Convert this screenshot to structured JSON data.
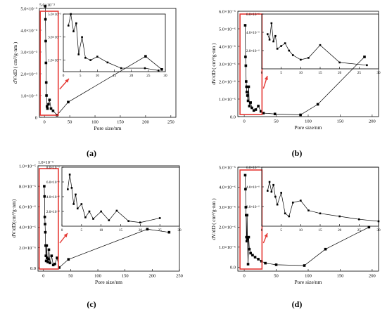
{
  "colors": {
    "ink": "#000000",
    "highlight": "#e53935"
  },
  "chart_data": [
    {
      "type": "line",
      "panel_label": "(a)",
      "xlabel": "Pore size/nm",
      "ylabel": "dV/dD ( cm³/g·nm )",
      "exp_label": "5.0×10⁻³",
      "xlim": [
        -10,
        260
      ],
      "ylim": [
        0,
        0.005
      ],
      "xticks": [
        0,
        50,
        100,
        150,
        200,
        250
      ],
      "xtick_labels": [
        "0",
        "50",
        "100",
        "150",
        "200",
        "250"
      ],
      "yticks": [
        0,
        0.001,
        0.002,
        0.003,
        0.004,
        0.005
      ],
      "ytick_labels": [
        "0",
        "1.0×10⁻³",
        "2.0×10⁻³",
        "3.0×10⁻³",
        "4.0×10⁻³",
        "5.0×10⁻³"
      ],
      "zoom_xrange": [
        0,
        30
      ],
      "x": [
        1.5,
        2,
        2.5,
        3,
        3.5,
        4,
        5,
        6,
        8,
        10,
        13,
        17,
        25,
        47,
        200,
        232
      ],
      "y": [
        0.0051,
        0.0045,
        0.0035,
        0.0025,
        0.0016,
        0.001,
        0.0005,
        0.0004,
        0.0006,
        0.0008,
        0.0004,
        0.0003,
        0.0001,
        0.0007,
        0.0028,
        0.0022
      ],
      "inset": {
        "xlim": [
          0,
          30
        ],
        "ylim": [
          0,
          0.005
        ],
        "xticks": [
          0,
          5,
          10,
          15,
          20,
          25,
          30
        ],
        "xtick_labels": [
          "0",
          "5",
          "10",
          "15",
          "20",
          "25",
          "30"
        ],
        "yticks": [
          0.001,
          0.003,
          0.005
        ],
        "ytick_labels": [
          "1.0×10⁻³",
          "3.0×10⁻³",
          "5.0×10⁻³"
        ],
        "x": [
          1.5,
          2.2,
          3,
          3.8,
          4.5,
          5.5,
          6.5,
          8,
          10,
          13,
          17,
          24,
          28
        ],
        "y": [
          0.004,
          0.005,
          0.0035,
          0.0042,
          0.0015,
          0.003,
          0.0012,
          0.001,
          0.0013,
          0.0008,
          0.0003,
          0.0003,
          0.0001
        ]
      }
    },
    {
      "type": "line",
      "panel_label": "(b)",
      "xlabel": "Pore size/nm",
      "ylabel": "dV/dD ( cm³/g·nm )",
      "exp_label": "",
      "xlim": [
        -10,
        210
      ],
      "ylim": [
        0,
        6e-06
      ],
      "xticks": [
        0,
        50,
        100,
        150,
        200
      ],
      "xtick_labels": [
        "0",
        "50",
        "100",
        "150",
        "200"
      ],
      "yticks": [
        0,
        1e-06,
        2e-06,
        3e-06,
        4e-06,
        5e-06,
        6e-06
      ],
      "ytick_labels": [
        "0.0",
        "1.0×10⁻⁶",
        "2.0×10⁻⁶",
        "3.0×10⁻⁶",
        "4.0×10⁻⁶",
        "5.0×10⁻⁶",
        "6.0×10⁻⁶"
      ],
      "zoom_xrange": [
        0,
        30
      ],
      "x": [
        1.5,
        2,
        2.5,
        3,
        3.5,
        4,
        5,
        6,
        7,
        8,
        10,
        12,
        15,
        18,
        22,
        26,
        30,
        48,
        88,
        115,
        188
      ],
      "y": [
        5.2e-06,
        3.4e-06,
        2.9e-06,
        2e-06,
        1.7e-06,
        1.4e-06,
        1.2e-06,
        9e-07,
        1.7e-06,
        6e-07,
        8e-07,
        5e-07,
        3.5e-07,
        4e-07,
        6e-07,
        3e-07,
        2e-07,
        1.5e-07,
        1e-07,
        7e-07,
        3.4e-06
      ],
      "inset": {
        "xlim": [
          0,
          30
        ],
        "ylim": [
          0,
          6e-06
        ],
        "xticks": [
          0,
          5,
          10,
          15,
          20,
          25,
          30
        ],
        "xtick_labels": [
          "0",
          "5",
          "10",
          "15",
          "20",
          "25",
          "30"
        ],
        "yticks": [
          2e-06,
          4e-06,
          6e-06
        ],
        "ytick_labels": [
          "2.0×10⁻⁶",
          "4.0×10⁻⁶",
          "6.0×10⁻⁶"
        ],
        "x": [
          1.5,
          2,
          2.5,
          3,
          3.5,
          4,
          5,
          6,
          7,
          8,
          10,
          12,
          15,
          20,
          27
        ],
        "y": [
          3.8e-06,
          3.2e-06,
          5e-06,
          3e-06,
          3.6e-06,
          2.2e-06,
          2.5e-06,
          2.8e-06,
          2e-06,
          1.5e-06,
          1e-06,
          1.2e-06,
          2.6e-06,
          7e-07,
          4e-07
        ]
      }
    },
    {
      "type": "line",
      "panel_label": "(c)",
      "xlabel": "Pore size/nm",
      "ylabel": "dV/dD(cm³/g·nm)",
      "exp_label": "1.0×10⁻⁵",
      "xlim": [
        -10,
        250
      ],
      "ylim": [
        -3e-07,
        1e-05
      ],
      "xticks": [
        0,
        50,
        100,
        150,
        200,
        250
      ],
      "xtick_labels": [
        "0",
        "50",
        "100",
        "150",
        "200",
        "250"
      ],
      "yticks": [
        0,
        2e-06,
        4e-06,
        6e-06,
        8e-06,
        1e-05
      ],
      "ytick_labels": [
        "0.0",
        "2.0×10⁻⁶",
        "4.0×10⁻⁶",
        "6.0×10⁻⁶",
        "8.0×10⁻⁶",
        "1.0×10⁻⁵"
      ],
      "zoom_xrange": [
        0,
        30
      ],
      "x": [
        1.5,
        2,
        2.5,
        3,
        3.5,
        4,
        4.5,
        5,
        6,
        7,
        8,
        9,
        10,
        12,
        15,
        18,
        21,
        25,
        29,
        46,
        191,
        231
      ],
      "y": [
        8e-06,
        7e-06,
        5e-06,
        4.3e-06,
        3.5e-06,
        2.2e-06,
        1.2e-06,
        7e-07,
        2.2e-06,
        1e-06,
        6e-07,
        9e-07,
        1.8e-06,
        5e-07,
        1.2e-06,
        3e-07,
        4e-07,
        1e-06,
        5e-08,
        8.5e-07,
        3.8e-06,
        3.5e-06
      ],
      "inset": {
        "xlim": [
          0,
          30
        ],
        "ylim": [
          0,
          8e-06
        ],
        "xticks": [
          0,
          5,
          10,
          15,
          20,
          25,
          30
        ],
        "xtick_labels": [
          "0",
          "5",
          "10",
          "15",
          "20",
          "25",
          "30"
        ],
        "yticks": [
          2e-06,
          4e-06,
          6e-06,
          8e-06
        ],
        "ytick_labels": [
          "2.0×10⁻⁶",
          "4.0×10⁻⁶",
          "6.0×10⁻⁶",
          "8.0×10⁻⁶"
        ],
        "x": [
          1.5,
          2,
          2.5,
          3,
          3.5,
          4,
          5,
          6,
          7,
          8,
          10,
          12,
          14,
          17,
          20,
          25
        ],
        "y": [
          5e-06,
          7e-06,
          5.2e-06,
          3e-06,
          4.3e-06,
          2.4e-06,
          3e-06,
          1.2e-06,
          2e-06,
          1e-06,
          2e-06,
          8e-07,
          2.1e-06,
          7e-07,
          5e-07,
          1.1e-06
        ]
      }
    },
    {
      "type": "line",
      "panel_label": "(d)",
      "xlabel": "Pore size/nm",
      "ylabel": "dV/dD ( cm³/g·nm )",
      "exp_label": "",
      "xlim": [
        -10,
        210
      ],
      "ylim": [
        -2e-07,
        5e-06
      ],
      "xticks": [
        0,
        50,
        100,
        150,
        200
      ],
      "xtick_labels": [
        "0",
        "50",
        "100",
        "150",
        "200"
      ],
      "yticks": [
        0,
        1e-06,
        2e-06,
        3e-06,
        4e-06,
        5e-06
      ],
      "ytick_labels": [
        "0.0",
        "1.0×10⁻⁶",
        "2.0×10⁻⁶",
        "3.0×10⁻⁶",
        "4.0×10⁻⁶",
        "5.0×10⁻⁶"
      ],
      "zoom_xrange": [
        0,
        30
      ],
      "x": [
        1.5,
        2,
        2.5,
        3,
        3.5,
        4,
        4.5,
        5,
        6,
        7,
        8,
        10,
        13,
        17,
        22,
        27,
        33,
        50,
        94,
        127,
        195
      ],
      "y": [
        4.6e-06,
        3.9e-06,
        3e-06,
        2.6e-06,
        1.5e-06,
        1.3e-06,
        2.6e-06,
        1.4e-06,
        1.5e-07,
        1.5e-06,
        9e-07,
        7e-07,
        6e-07,
        5e-07,
        4e-07,
        3e-07,
        2e-07,
        1.2e-07,
        8e-08,
        9e-07,
        2e-06
      ],
      "inset": {
        "xlim": [
          0,
          30
        ],
        "ylim": [
          0,
          6e-06
        ],
        "xticks": [
          0,
          5,
          10,
          15,
          20,
          25,
          30
        ],
        "xtick_labels": [
          "0",
          "5",
          "10",
          "15",
          "20",
          "25",
          "30"
        ],
        "yticks": [
          2e-06,
          4e-06,
          6e-06
        ],
        "ytick_labels": [
          "2.0×10⁻⁶",
          "4.0×10⁻⁶",
          "6.0×10⁻⁶"
        ],
        "x": [
          1.5,
          2,
          2.5,
          3,
          3.5,
          4,
          5,
          6,
          7,
          8,
          10,
          12,
          15,
          20,
          25,
          30
        ],
        "y": [
          3.6e-06,
          4.5e-06,
          3.5e-06,
          4.2e-06,
          3e-06,
          2.2e-06,
          3.4e-06,
          1.3e-06,
          1e-06,
          2.4e-06,
          2.6e-06,
          1.6e-06,
          1.3e-06,
          1e-06,
          7e-07,
          5e-07
        ]
      }
    }
  ]
}
